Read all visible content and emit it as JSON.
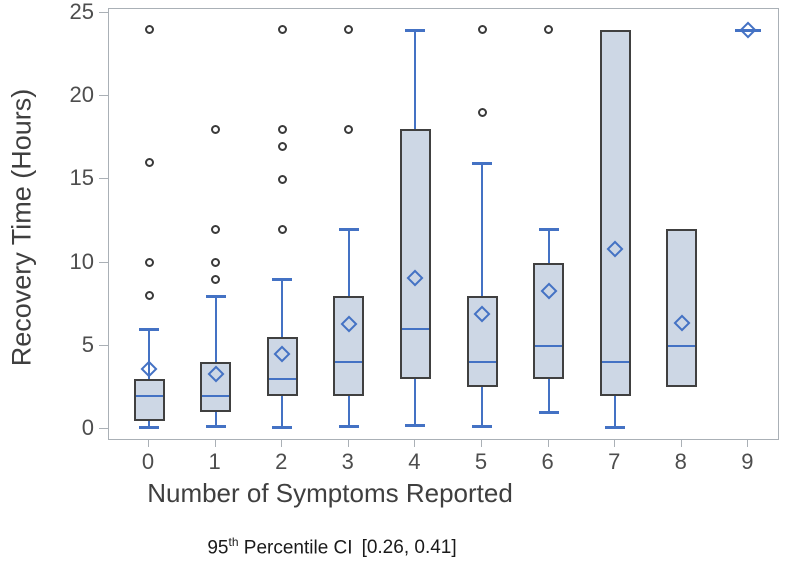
{
  "chart_data": {
    "type": "boxplot",
    "title": "",
    "xlabel": "Number of Symptoms Reported",
    "ylabel": "Recovery Time (Hours)",
    "x_categories": [
      "0",
      "1",
      "2",
      "3",
      "4",
      "5",
      "6",
      "7",
      "8",
      "9"
    ],
    "y_ticks": [
      0,
      5,
      10,
      15,
      20,
      25
    ],
    "ylim": [
      0,
      25
    ],
    "grid": false,
    "legend": "none",
    "series": [
      {
        "x": "0",
        "min": 0.1,
        "q1": 0.5,
        "median": 2,
        "q3": 3,
        "max": 6,
        "mean": 3.6,
        "outliers": [
          8,
          10,
          16,
          24
        ]
      },
      {
        "x": "1",
        "min": 0.2,
        "q1": 1,
        "median": 2,
        "q3": 4,
        "max": 8,
        "mean": 3.3,
        "outliers": [
          9,
          10,
          12,
          18
        ]
      },
      {
        "x": "2",
        "min": 0.1,
        "q1": 2,
        "median": 3,
        "q3": 5.5,
        "max": 9,
        "mean": 4.5,
        "outliers": [
          12,
          15,
          17,
          18,
          24
        ]
      },
      {
        "x": "3",
        "min": 0.2,
        "q1": 2,
        "median": 4,
        "q3": 8,
        "max": 12,
        "mean": 6.3,
        "outliers": [
          18,
          24
        ]
      },
      {
        "x": "4",
        "min": 0.25,
        "q1": 3,
        "median": 6,
        "q3": 18,
        "max": 24,
        "mean": 9.1,
        "outliers": []
      },
      {
        "x": "5",
        "min": 0.2,
        "q1": 2.5,
        "median": 4,
        "q3": 8,
        "max": 16,
        "mean": 6.9,
        "outliers": [
          19,
          24
        ]
      },
      {
        "x": "6",
        "min": 1,
        "q1": 3,
        "median": 5,
        "q3": 10,
        "max": 12,
        "mean": 8.3,
        "outliers": [
          24
        ]
      },
      {
        "x": "7",
        "min": 0.1,
        "q1": 2,
        "median": 4,
        "q3": 24,
        "max": 24,
        "mean": 10.8,
        "outliers": []
      },
      {
        "x": "8",
        "min": 2.5,
        "q1": 2.5,
        "median": 5,
        "q3": 12,
        "max": 12,
        "mean": 6.4,
        "outliers": []
      },
      {
        "x": "9",
        "min": 24,
        "q1": 24,
        "median": 24,
        "q3": 24,
        "max": 24,
        "mean": 24,
        "outliers": [],
        "single_point": true
      }
    ],
    "caption": {
      "prefix": "95",
      "superscript": "th",
      "label": " Percentile CI",
      "interval": "[0.26, 0.41]"
    },
    "colors": {
      "box_fill": "#cdd7e5",
      "box_border": "#404040",
      "line_blue": "#4472c4",
      "outlier": "#3a3a3a",
      "axis": "#aab0b6",
      "text": "#3f3f3f"
    }
  }
}
